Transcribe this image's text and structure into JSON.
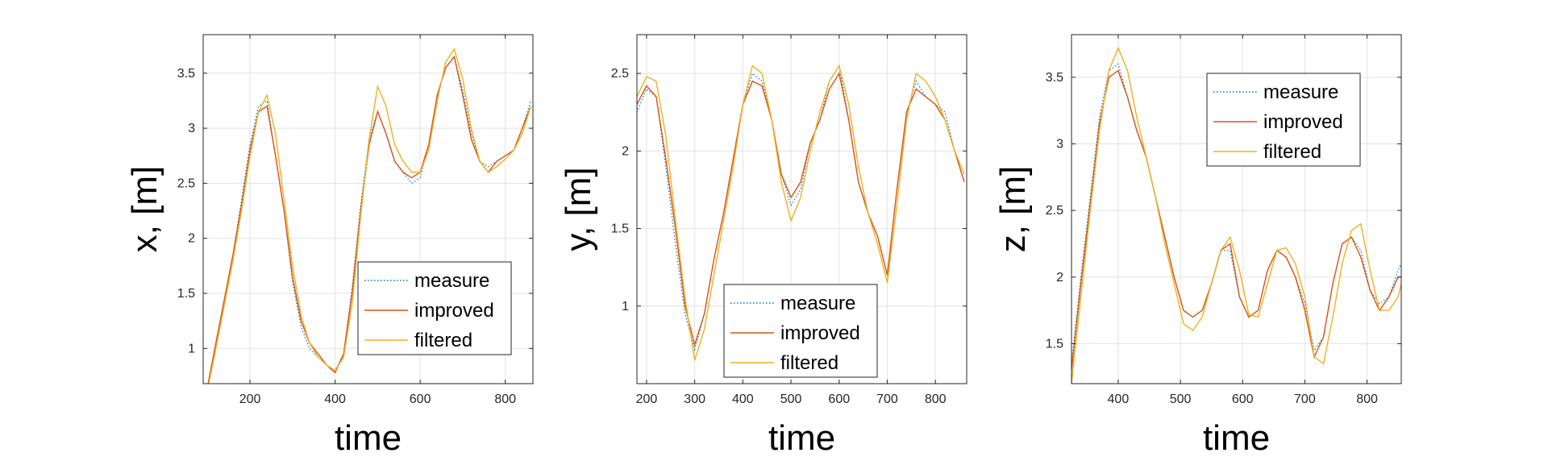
{
  "colors": {
    "measure": "#0072BD",
    "improved": "#D95319",
    "filtered": "#EDB120",
    "grid": "#e3e3e3",
    "axis": "#262626"
  },
  "chart_data": [
    {
      "type": "line",
      "xlabel": "time",
      "ylabel": "x, [m]",
      "xlim": [
        90,
        865
      ],
      "ylim": [
        0.68,
        3.85
      ],
      "xticks": [
        200,
        400,
        600,
        800
      ],
      "yticks": [
        1,
        1.5,
        2,
        2.5,
        3,
        3.5
      ],
      "grid": true,
      "legend": {
        "position": "bottom-right",
        "entries": [
          "measure",
          "improved",
          "filtered"
        ]
      },
      "series": [
        {
          "name": "measure",
          "style": "dotted",
          "x": [
            100,
            120,
            140,
            160,
            180,
            200,
            220,
            240,
            260,
            280,
            300,
            320,
            340,
            360,
            380,
            400,
            420,
            440,
            460,
            480,
            500,
            520,
            540,
            560,
            580,
            600,
            620,
            640,
            660,
            680,
            700,
            720,
            740,
            760,
            780,
            800,
            820,
            840,
            860
          ],
          "y": [
            0.65,
            1.05,
            1.45,
            1.85,
            2.35,
            2.85,
            3.2,
            3.25,
            2.75,
            2.25,
            1.6,
            1.2,
            1.0,
            0.92,
            0.85,
            0.8,
            0.95,
            1.55,
            2.3,
            2.9,
            3.15,
            2.95,
            2.7,
            2.6,
            2.5,
            2.55,
            2.85,
            3.3,
            3.55,
            3.65,
            3.35,
            2.95,
            2.7,
            2.65,
            2.7,
            2.75,
            2.8,
            3.0,
            3.25
          ]
        },
        {
          "name": "improved",
          "style": "solid",
          "x": [
            100,
            120,
            140,
            160,
            180,
            200,
            220,
            240,
            260,
            280,
            300,
            320,
            340,
            360,
            380,
            400,
            420,
            440,
            460,
            480,
            500,
            520,
            540,
            560,
            580,
            600,
            620,
            640,
            660,
            680,
            700,
            720,
            740,
            760,
            780,
            800,
            820,
            840,
            860
          ],
          "y": [
            0.65,
            1.05,
            1.45,
            1.85,
            2.3,
            2.8,
            3.15,
            3.2,
            2.75,
            2.25,
            1.65,
            1.25,
            1.05,
            0.95,
            0.85,
            0.78,
            0.95,
            1.5,
            2.25,
            2.85,
            3.15,
            2.95,
            2.7,
            2.6,
            2.55,
            2.6,
            2.85,
            3.3,
            3.55,
            3.65,
            3.3,
            2.9,
            2.7,
            2.6,
            2.7,
            2.75,
            2.8,
            3.0,
            3.2
          ]
        },
        {
          "name": "filtered",
          "style": "solid",
          "x": [
            100,
            120,
            140,
            160,
            180,
            200,
            220,
            240,
            260,
            280,
            300,
            320,
            340,
            360,
            380,
            400,
            420,
            440,
            460,
            480,
            500,
            520,
            540,
            560,
            580,
            600,
            620,
            640,
            660,
            680,
            700,
            720,
            740,
            760,
            780,
            800,
            820,
            840,
            860
          ],
          "y": [
            0.62,
            1.0,
            1.4,
            1.8,
            2.25,
            2.75,
            3.15,
            3.3,
            2.95,
            2.35,
            1.75,
            1.3,
            1.05,
            0.92,
            0.85,
            0.8,
            0.92,
            1.4,
            2.2,
            2.9,
            3.38,
            3.2,
            2.85,
            2.7,
            2.6,
            2.6,
            2.8,
            3.25,
            3.6,
            3.72,
            3.45,
            3.0,
            2.7,
            2.6,
            2.65,
            2.72,
            2.8,
            2.95,
            3.2
          ]
        }
      ]
    },
    {
      "type": "line",
      "xlabel": "time",
      "ylabel": "y, [m]",
      "xlim": [
        180,
        865
      ],
      "ylim": [
        0.5,
        2.75
      ],
      "xticks": [
        200,
        300,
        400,
        500,
        600,
        700,
        800
      ],
      "yticks": [
        1,
        1.5,
        2,
        2.5
      ],
      "grid": true,
      "legend": {
        "position": "bottom-center",
        "entries": [
          "measure",
          "improved",
          "filtered"
        ]
      },
      "series": [
        {
          "name": "measure",
          "style": "dotted",
          "x": [
            180,
            200,
            220,
            240,
            260,
            280,
            300,
            320,
            340,
            360,
            380,
            400,
            420,
            440,
            460,
            480,
            500,
            520,
            540,
            560,
            580,
            600,
            620,
            640,
            660,
            680,
            700,
            720,
            740,
            760,
            780,
            800,
            820,
            840,
            860
          ],
          "y": [
            2.25,
            2.4,
            2.35,
            1.9,
            1.4,
            0.95,
            0.72,
            0.95,
            1.3,
            1.6,
            1.95,
            2.3,
            2.5,
            2.45,
            2.2,
            1.85,
            1.65,
            1.75,
            2.05,
            2.2,
            2.45,
            2.55,
            2.2,
            1.8,
            1.6,
            1.45,
            1.2,
            1.75,
            2.25,
            2.45,
            2.35,
            2.3,
            2.25,
            2.0,
            1.8
          ]
        },
        {
          "name": "improved",
          "style": "solid",
          "x": [
            180,
            200,
            220,
            240,
            260,
            280,
            300,
            320,
            340,
            360,
            380,
            400,
            420,
            440,
            460,
            480,
            500,
            520,
            540,
            560,
            580,
            600,
            620,
            640,
            660,
            680,
            700,
            720,
            740,
            760,
            780,
            800,
            820,
            840,
            860
          ],
          "y": [
            2.3,
            2.42,
            2.35,
            1.95,
            1.5,
            1.0,
            0.75,
            0.95,
            1.3,
            1.6,
            1.95,
            2.3,
            2.45,
            2.42,
            2.2,
            1.85,
            1.7,
            1.8,
            2.05,
            2.2,
            2.4,
            2.5,
            2.2,
            1.8,
            1.6,
            1.45,
            1.2,
            1.75,
            2.25,
            2.4,
            2.35,
            2.3,
            2.2,
            2.0,
            1.8
          ]
        },
        {
          "name": "filtered",
          "style": "solid",
          "x": [
            180,
            200,
            220,
            240,
            260,
            280,
            300,
            320,
            340,
            360,
            380,
            400,
            420,
            440,
            460,
            480,
            500,
            520,
            540,
            560,
            580,
            600,
            620,
            640,
            660,
            680,
            700,
            720,
            740,
            760,
            780,
            800,
            820,
            840,
            860
          ],
          "y": [
            2.35,
            2.48,
            2.45,
            2.1,
            1.55,
            1.05,
            0.65,
            0.85,
            1.2,
            1.55,
            1.9,
            2.3,
            2.55,
            2.5,
            2.2,
            1.8,
            1.55,
            1.7,
            2.0,
            2.25,
            2.45,
            2.55,
            2.3,
            1.9,
            1.6,
            1.4,
            1.15,
            1.65,
            2.2,
            2.5,
            2.45,
            2.35,
            2.2,
            2.0,
            1.85
          ]
        }
      ]
    },
    {
      "type": "line",
      "xlabel": "time",
      "ylabel": "z, [m]",
      "xlim": [
        325,
        855
      ],
      "ylim": [
        1.2,
        3.82
      ],
      "xticks": [
        400,
        500,
        600,
        700,
        800
      ],
      "yticks": [
        1.5,
        2,
        2.5,
        3,
        3.5
      ],
      "grid": true,
      "legend": {
        "position": "top-center",
        "entries": [
          "measure",
          "improved",
          "filtered"
        ]
      },
      "series": [
        {
          "name": "measure",
          "style": "dotted",
          "x": [
            325,
            340,
            355,
            370,
            385,
            400,
            415,
            430,
            445,
            460,
            475,
            490,
            505,
            520,
            535,
            550,
            565,
            580,
            595,
            610,
            625,
            640,
            655,
            670,
            685,
            700,
            715,
            730,
            745,
            760,
            775,
            790,
            805,
            820,
            835,
            850,
            855
          ],
          "y": [
            1.35,
            2.0,
            2.6,
            3.2,
            3.55,
            3.6,
            3.35,
            3.1,
            2.9,
            2.6,
            2.3,
            2.0,
            1.75,
            1.7,
            1.75,
            1.95,
            2.2,
            2.2,
            1.85,
            1.7,
            1.75,
            2.05,
            2.2,
            2.15,
            2.0,
            1.8,
            1.45,
            1.55,
            1.95,
            2.25,
            2.3,
            2.2,
            1.9,
            1.8,
            1.85,
            2.05,
            2.1
          ]
        },
        {
          "name": "improved",
          "style": "solid",
          "x": [
            325,
            340,
            355,
            370,
            385,
            400,
            415,
            430,
            445,
            460,
            475,
            490,
            505,
            520,
            535,
            550,
            565,
            580,
            595,
            610,
            625,
            640,
            655,
            670,
            685,
            700,
            715,
            730,
            745,
            760,
            775,
            790,
            805,
            820,
            835,
            850,
            855
          ],
          "y": [
            1.3,
            1.95,
            2.55,
            3.15,
            3.5,
            3.55,
            3.35,
            3.1,
            2.9,
            2.6,
            2.3,
            2.0,
            1.75,
            1.7,
            1.75,
            1.95,
            2.2,
            2.25,
            1.85,
            1.7,
            1.75,
            2.05,
            2.2,
            2.15,
            2.0,
            1.75,
            1.4,
            1.55,
            1.95,
            2.25,
            2.3,
            2.15,
            1.9,
            1.75,
            1.85,
            2.0,
            2.0
          ]
        },
        {
          "name": "filtered",
          "style": "solid",
          "x": [
            325,
            340,
            355,
            370,
            385,
            400,
            415,
            430,
            445,
            460,
            475,
            490,
            505,
            520,
            535,
            550,
            565,
            580,
            595,
            610,
            625,
            640,
            655,
            670,
            685,
            700,
            715,
            730,
            745,
            760,
            775,
            790,
            805,
            820,
            835,
            850,
            855
          ],
          "y": [
            1.2,
            1.85,
            2.5,
            3.1,
            3.55,
            3.72,
            3.55,
            3.2,
            2.9,
            2.6,
            2.25,
            1.95,
            1.65,
            1.6,
            1.7,
            1.95,
            2.2,
            2.3,
            2.05,
            1.72,
            1.7,
            1.95,
            2.2,
            2.22,
            2.1,
            1.85,
            1.4,
            1.35,
            1.7,
            2.1,
            2.35,
            2.4,
            2.05,
            1.75,
            1.75,
            1.85,
            1.95
          ]
        }
      ]
    }
  ]
}
